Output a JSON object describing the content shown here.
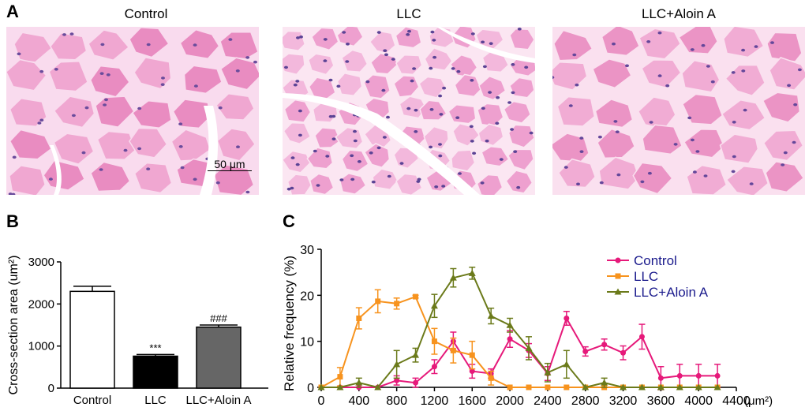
{
  "panel_a": {
    "label": "A",
    "images": [
      {
        "title": "Control",
        "palette": {
          "bg": "#f0a7d1",
          "cell": "#e98cc1",
          "edge": "#f9dbee",
          "nuc": "#6a4c9c"
        }
      },
      {
        "title": "LLC",
        "palette": {
          "bg": "#f3b8dc",
          "cell": "#eea0cf",
          "edge": "#fbe6f2",
          "nuc": "#5b4395"
        }
      },
      {
        "title": "LLC+Aloin A",
        "palette": {
          "bg": "#f1acd4",
          "cell": "#eb94c5",
          "edge": "#fae0ef",
          "nuc": "#64479a"
        }
      }
    ],
    "scale_bar": "50 μm"
  },
  "panel_b": {
    "label": "B",
    "sig_marks": [
      "",
      "***",
      "###"
    ]
  },
  "panel_c": {
    "label": "C",
    "x_unit": "(μm²)"
  },
  "colors": {
    "control": "#e6197a",
    "llc": "#f7931e",
    "aloin": "#6b7a1a"
  },
  "chart_data": [
    {
      "type": "bar",
      "title": "",
      "xlabel": "",
      "ylabel": "Cross-section area (um²)",
      "ylim": [
        0,
        3000
      ],
      "yticks": [
        0,
        1000,
        2000,
        3000
      ],
      "categories": [
        "Control",
        "LLC",
        "LLC+Aloin A"
      ],
      "values": [
        2300,
        760,
        1450
      ],
      "errors": [
        120,
        40,
        50
      ],
      "fills": [
        "#ffffff",
        "#000000",
        "#666666"
      ]
    },
    {
      "type": "line",
      "title": "",
      "xlabel": "(μm²)",
      "ylabel": "Relative frequency (%)",
      "xlim": [
        0,
        4400
      ],
      "ylim": [
        0,
        30
      ],
      "xticks": [
        0,
        400,
        800,
        1200,
        1600,
        2000,
        2400,
        2800,
        3200,
        3600,
        4000,
        4400
      ],
      "yticks": [
        0,
        10,
        20,
        30
      ],
      "legend_position": "top-right",
      "series": [
        {
          "name": "Control",
          "color": "#e6197a",
          "marker": "circle",
          "x": [
            0,
            200,
            400,
            600,
            800,
            1000,
            1200,
            1400,
            1600,
            1800,
            2000,
            2200,
            2400,
            2600,
            2800,
            3000,
            3200,
            3400,
            3600,
            3800,
            4000,
            4200
          ],
          "y": [
            0,
            0,
            0,
            0,
            1.5,
            1,
            4.5,
            10,
            3.5,
            3,
            10.5,
            8,
            3,
            15,
            7.8,
            9.3,
            7.5,
            11,
            2,
            2.5,
            2.5,
            2.5
          ],
          "err": [
            0,
            0,
            0,
            0,
            1,
            1,
            1.5,
            2,
            1.5,
            1,
            1.8,
            1.5,
            1.5,
            1.5,
            1,
            1.2,
            1.5,
            2.7,
            2.5,
            2.5,
            2.5,
            2.5
          ]
        },
        {
          "name": "LLC",
          "color": "#f7931e",
          "marker": "square",
          "x": [
            0,
            200,
            400,
            600,
            800,
            1000,
            1200,
            1400,
            1600,
            1800,
            2000,
            2200,
            2400,
            2600,
            2800,
            3000,
            3200,
            3400,
            3600,
            3800,
            4000,
            4200
          ],
          "y": [
            0,
            2.3,
            15,
            18.7,
            18.2,
            19.7,
            10,
            8,
            7,
            2,
            0,
            0,
            0,
            0,
            0,
            0,
            0,
            0,
            0,
            0,
            0,
            0
          ],
          "err": [
            0,
            2,
            2.3,
            2.5,
            1.2,
            0.3,
            2.8,
            2.7,
            3,
            1.5,
            0,
            0,
            0,
            0,
            0,
            0,
            0,
            0,
            0,
            0,
            0,
            0
          ]
        },
        {
          "name": "LLC+Aloin A",
          "color": "#6b7a1a",
          "marker": "triangle",
          "x": [
            0,
            200,
            400,
            600,
            800,
            1000,
            1200,
            1400,
            1600,
            1800,
            2000,
            2200,
            2400,
            2600,
            2800,
            3000,
            3200,
            3400,
            3600,
            3800,
            4000,
            4200
          ],
          "y": [
            0,
            0,
            1,
            0,
            5,
            7,
            17.7,
            23.8,
            24.8,
            15.5,
            13.5,
            8.5,
            3.2,
            5,
            0,
            1,
            0,
            0,
            0,
            0,
            0,
            0
          ],
          "err": [
            0,
            0,
            1,
            0,
            3,
            1.5,
            2.5,
            2,
            1.3,
            1.7,
            1.5,
            2.5,
            2,
            3,
            0,
            1,
            0,
            0,
            0,
            0,
            0,
            0
          ]
        }
      ]
    }
  ]
}
